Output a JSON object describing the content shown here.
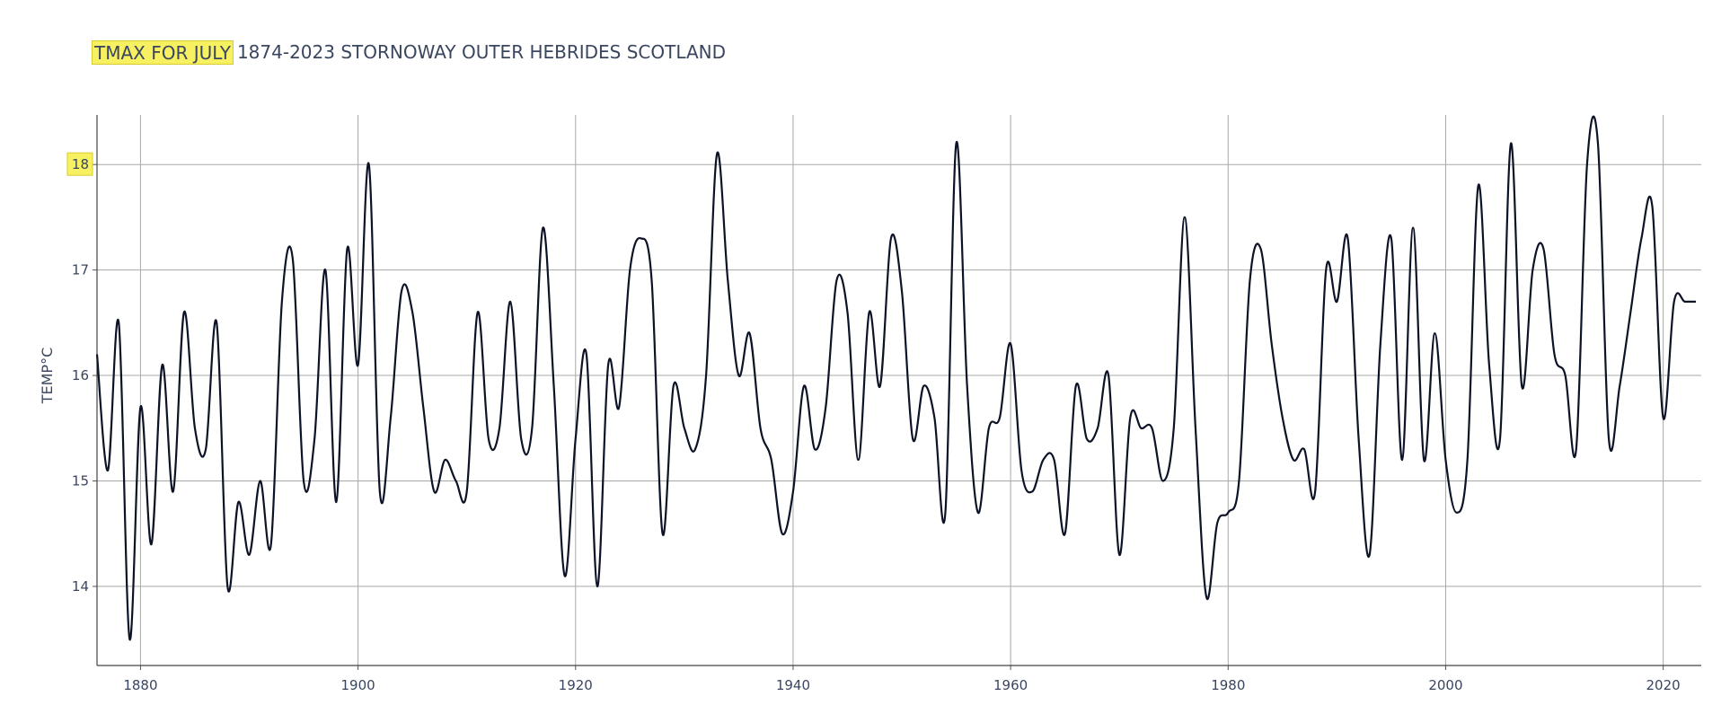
{
  "chart_data": {
    "type": "line",
    "title_highlight": "TMAX FOR JULY",
    "title_rest": "1874-2023 STORNOWAY OUTER HEBRIDES SCOTLAND",
    "xlabel": "",
    "ylabel": "TEMP°C",
    "xlim": [
      1876,
      2023.5
    ],
    "ylim": [
      13.25,
      18.47
    ],
    "xticks": [
      1880,
      1900,
      1920,
      1940,
      1960,
      1980,
      2000,
      2020
    ],
    "yticks": [
      14,
      15,
      16,
      17,
      18
    ],
    "highlight_ytick": 18,
    "grid": true,
    "colors": {
      "line": "#0d1326",
      "grid": "#a8a8a8",
      "highlight": "#f7f060",
      "text": "#3a4660"
    },
    "series": [
      {
        "x": [
          1876,
          1877,
          1878,
          1879,
          1880,
          1881,
          1882,
          1883,
          1884,
          1885,
          1886,
          1887,
          1888,
          1889,
          1890,
          1891,
          1892,
          1893,
          1894,
          1895,
          1896,
          1897,
          1898,
          1899,
          1900,
          1901,
          1902,
          1903,
          1904,
          1905,
          1906,
          1907,
          1908,
          1909,
          1910,
          1911,
          1912,
          1913,
          1914,
          1915,
          1916,
          1917,
          1918,
          1919,
          1920,
          1921,
          1922,
          1923,
          1924,
          1925,
          1926,
          1927,
          1928,
          1929,
          1930,
          1931,
          1932,
          1933,
          1934,
          1935,
          1936,
          1937,
          1938,
          1939,
          1940,
          1941,
          1942,
          1943,
          1944,
          1945,
          1946,
          1947,
          1948,
          1949,
          1950,
          1951,
          1952,
          1953,
          1954,
          1955,
          1956,
          1957,
          1958,
          1959,
          1960,
          1961,
          1962,
          1963,
          1964,
          1965,
          1966,
          1967,
          1968,
          1969,
          1970,
          1971,
          1972,
          1973,
          1974,
          1975,
          1976,
          1977,
          1978,
          1979,
          1980,
          1981,
          1982,
          1983,
          1984,
          1985,
          1986,
          1987,
          1988,
          1989,
          1990,
          1991,
          1992,
          1993,
          1994,
          1995,
          1996,
          1997,
          1998,
          1999,
          2000,
          2001,
          2002,
          2003,
          2004,
          2005,
          2006,
          2007,
          2008,
          2009,
          2010,
          2011,
          2012,
          2013,
          2014,
          2015,
          2016,
          2017,
          2018,
          2019,
          2020,
          2021,
          2022,
          2023
        ],
        "y": [
          16.2,
          15.1,
          16.5,
          13.5,
          15.7,
          14.4,
          16.1,
          14.9,
          16.6,
          15.5,
          15.3,
          16.5,
          14.0,
          14.8,
          14.3,
          15.0,
          14.4,
          16.7,
          17.1,
          15.0,
          15.4,
          17.0,
          14.8,
          17.2,
          16.1,
          18.0,
          14.9,
          15.6,
          16.8,
          16.6,
          15.7,
          14.9,
          15.2,
          15.0,
          14.9,
          16.6,
          15.4,
          15.5,
          16.7,
          15.4,
          15.5,
          17.4,
          15.9,
          14.1,
          15.4,
          16.2,
          14.0,
          16.1,
          15.7,
          17.0,
          17.3,
          16.9,
          14.5,
          15.9,
          15.5,
          15.3,
          16.0,
          18.1,
          16.9,
          16.0,
          16.4,
          15.5,
          15.2,
          14.5,
          14.9,
          15.9,
          15.3,
          15.7,
          16.9,
          16.6,
          15.2,
          16.6,
          15.9,
          17.3,
          16.8,
          15.4,
          15.9,
          15.6,
          14.7,
          18.2,
          15.9,
          14.7,
          15.5,
          15.6,
          16.3,
          15.1,
          14.9,
          15.2,
          15.2,
          14.5,
          15.9,
          15.4,
          15.5,
          16.0,
          14.3,
          15.6,
          15.5,
          15.5,
          15.0,
          15.5,
          17.5,
          15.5,
          13.9,
          14.6,
          14.7,
          15.0,
          16.9,
          17.2,
          16.3,
          15.6,
          15.2,
          15.3,
          14.9,
          17.0,
          16.7,
          17.3,
          15.4,
          14.3,
          16.3,
          17.3,
          15.2,
          17.4,
          15.2,
          16.4,
          15.2,
          14.7,
          15.2,
          17.8,
          16.1,
          15.4,
          18.2,
          15.9,
          17.0,
          17.2,
          16.2,
          16.0,
          15.3,
          18.0,
          18.2,
          15.4,
          15.9,
          16.6,
          17.3,
          17.6,
          15.6,
          16.7,
          16.7,
          16.7
        ]
      }
    ]
  }
}
